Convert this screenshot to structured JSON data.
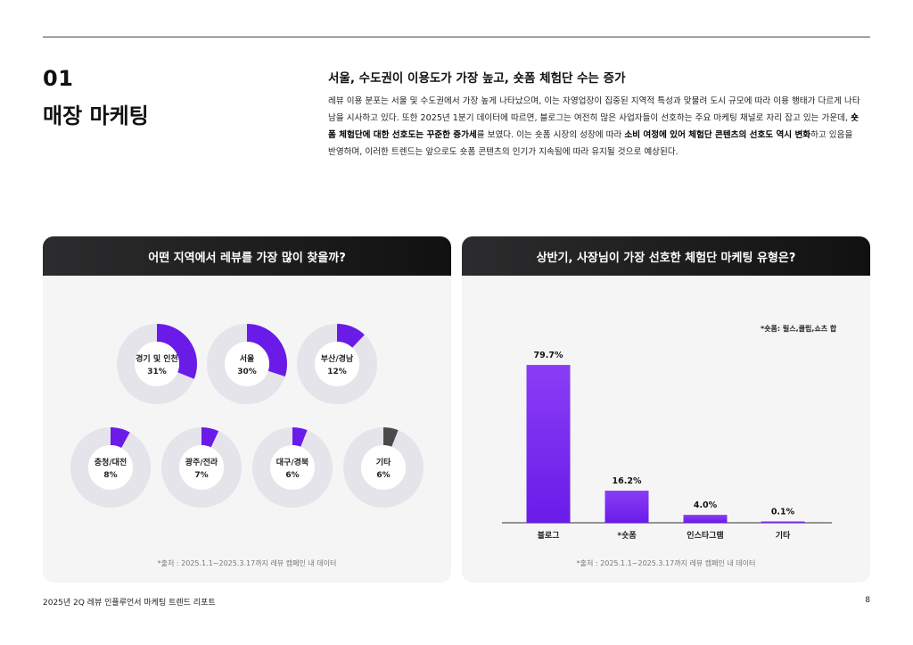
{
  "section": {
    "number": "01",
    "title": "매장 마케팅"
  },
  "headline": "서울, 수도권이 이용도가 가장 높고, 숏폼 체험단 수는 증가",
  "body": {
    "p1": "레뷰 이용 분포는 서울 및 수도권에서 가장 높게 나타났으며, 이는 자영업장이 집중된 지역적 특성과 맞물려 도시 규모에 따라 이용 행태가 다르게 나타남을 시사하고 있다. 또한 2025년 1분기 데이터에 따르면, 블로그는 여전히 많은 사업자들이 선호하는 주요 마케팅 채널로 자리 잡고 있는 가운데, ",
    "b1": "숏폼 체험단에 대한 선호도는 꾸준한 증가세",
    "p2": "를 보였다. 이는 숏폼 시장의 성장에 따라 ",
    "b2": "소비 여정에 있어 체험단 콘텐츠의 선호도 역시 변화",
    "p3": "하고 있음을 반영하며, 이러한 트렌드는 앞으로도 숏폼 콘텐츠의 인기가 지속됨에 따라 유지될 것으로 예상된다."
  },
  "left_panel": {
    "title": "어떤 지역에서 레뷰를 가장 많이 찾을까?",
    "source": "*출처 : 2025.1.1~2025.3.17까지 레뷰 캠페인 내 데이터"
  },
  "right_panel": {
    "title": "상반기, 사장님이 가장 선호한 체험단 마케팅 유형은?",
    "footnote": "*숏폼: 릴스,클립,쇼츠 합",
    "source": "*출처 : 2025.1.1~2025.3.17까지 레뷰 캠페인 내 데이터"
  },
  "colors": {
    "accent": "#6a1be8",
    "accent_light": "#8a3df5",
    "ring": "#e4e4ea",
    "other": "#4a4a4a"
  },
  "chart_data": [
    {
      "type": "pie",
      "title": "어떤 지역에서 레뷰를 가장 많이 찾을까?",
      "slices": [
        {
          "label": "경기 및 인천",
          "value": 31,
          "value_label": "31%"
        },
        {
          "label": "서울",
          "value": 30,
          "value_label": "30%"
        },
        {
          "label": "부산/경남",
          "value": 12,
          "value_label": "12%"
        },
        {
          "label": "충청/대전",
          "value": 8,
          "value_label": "8%"
        },
        {
          "label": "광주/전라",
          "value": 7,
          "value_label": "7%"
        },
        {
          "label": "대구/경북",
          "value": 6,
          "value_label": "6%"
        },
        {
          "label": "기타",
          "value": 6,
          "value_label": "6%"
        }
      ]
    },
    {
      "type": "bar",
      "title": "상반기, 사장님이 가장 선호한 체험단 마케팅 유형은?",
      "categories": [
        "블로그",
        "*숏폼",
        "인스타그램",
        "기타"
      ],
      "values": [
        79.7,
        16.2,
        4.0,
        0.1
      ],
      "value_labels": [
        "79.7%",
        "16.2%",
        "4.0%",
        "0.1%"
      ],
      "ylim": [
        0,
        100
      ]
    }
  ],
  "footer": {
    "title": "2025년 2Q 레뷰 인플루언서 마케팅 트렌드 리포트",
    "page": "8"
  }
}
